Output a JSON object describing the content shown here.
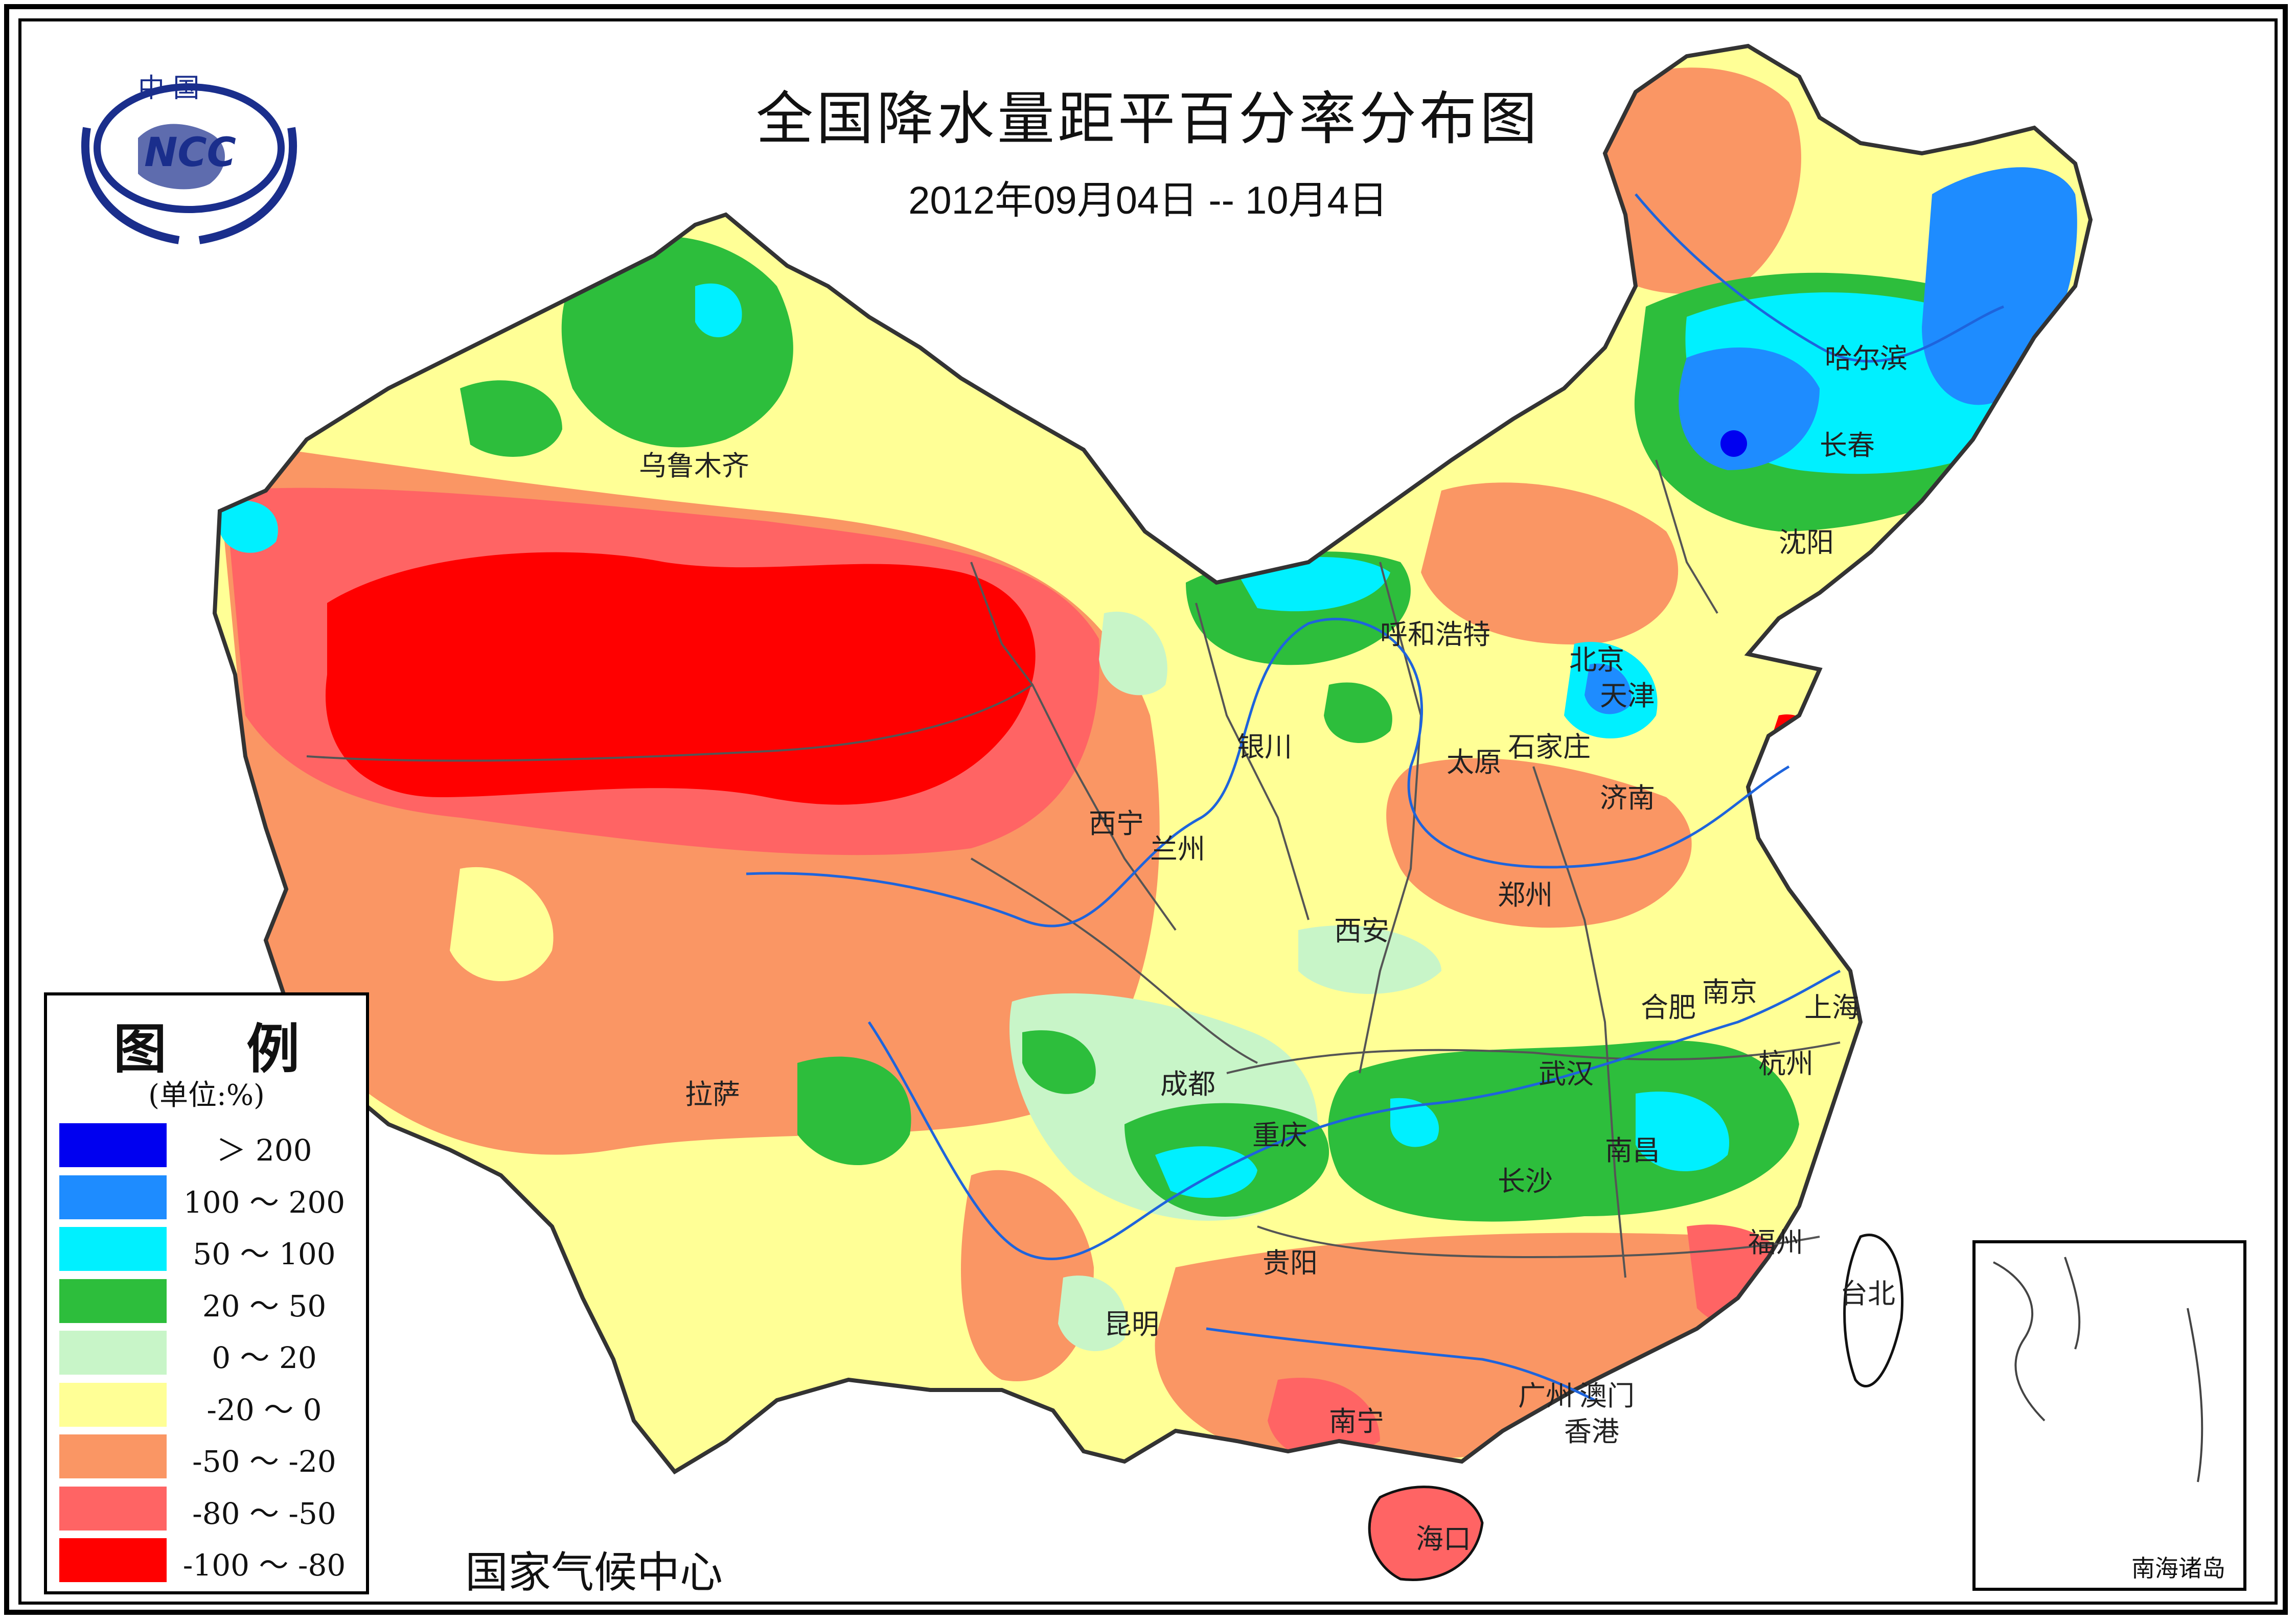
{
  "title": "全国降水量距平百分率分布图",
  "subtitle": "2012年09月04日 -- 10月4日",
  "logo": {
    "top_text": "中 国",
    "emblem_text": "NCC",
    "color": "#1a2e8c"
  },
  "legend": {
    "title": "图 例",
    "unit": "(单位:%)",
    "items": [
      {
        "color": "#0000f0",
        "label": "＞ 200"
      },
      {
        "color": "#1e8cff",
        "label": "100 ～ 200"
      },
      {
        "color": "#00f0ff",
        "label": "50 ～ 100"
      },
      {
        "color": "#2dbe3c",
        "label": "20 ～ 50"
      },
      {
        "color": "#c8f5c8",
        "label": "0 ～ 20"
      },
      {
        "color": "#ffff96",
        "label": "-20 ～ 0"
      },
      {
        "color": "#fa9664",
        "label": "-50 ～ -20"
      },
      {
        "color": "#ff6464",
        "label": "-80 ～ -50"
      },
      {
        "color": "#ff0000",
        "label": "-100 ～ -80"
      }
    ]
  },
  "cities": [
    "乌鲁木齐",
    "哈尔滨",
    "长春",
    "沈阳",
    "呼和浩特",
    "北京",
    "天津",
    "银川",
    "太原",
    "石家庄",
    "济南",
    "西宁",
    "兰州",
    "郑州",
    "西安",
    "拉萨",
    "成都",
    "合肥",
    "南京",
    "上海",
    "杭州",
    "武汉",
    "重庆",
    "南昌",
    "长沙",
    "福州",
    "贵阳",
    "台北",
    "昆明",
    "南宁",
    "广州",
    "澳门",
    "香港",
    "海口"
  ],
  "inset_label": "南海诸岛",
  "footer": "国家气候中心"
}
